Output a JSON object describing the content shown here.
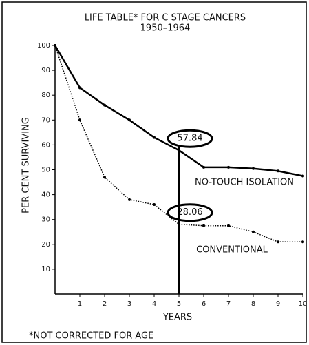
{
  "chart_data": {
    "type": "line",
    "title": "LIFE TABLE* FOR C STAGE CANCERS",
    "subtitle": "1950–1964",
    "y_label": "PER CENT SURVIVING",
    "x_label": "YEARS",
    "footnote": "*NOT CORRECTED FOR AGE",
    "x": [
      0,
      1,
      2,
      3,
      4,
      5,
      6,
      7,
      8,
      9,
      10
    ],
    "series": [
      {
        "name": "NO-TOUCH ISOLATION",
        "color": "#000000",
        "style": "solid",
        "values": [
          100,
          83,
          76,
          70,
          63,
          57.84,
          51,
          51,
          50.5,
          49.5,
          47.5
        ]
      },
      {
        "name": "CONVENTIONAL",
        "color": "#000000",
        "style": "dotted",
        "values": [
          100,
          70,
          47,
          38,
          36,
          28.06,
          27.5,
          27.5,
          25,
          21,
          21
        ]
      }
    ],
    "xlim": [
      0,
      10
    ],
    "xticks": [
      1,
      2,
      3,
      4,
      5,
      6,
      7,
      8,
      9,
      10
    ],
    "ylim": [
      0,
      100
    ],
    "yticks": [
      10,
      20,
      30,
      40,
      50,
      60,
      70,
      80,
      90,
      100
    ],
    "grid": false
  }
}
